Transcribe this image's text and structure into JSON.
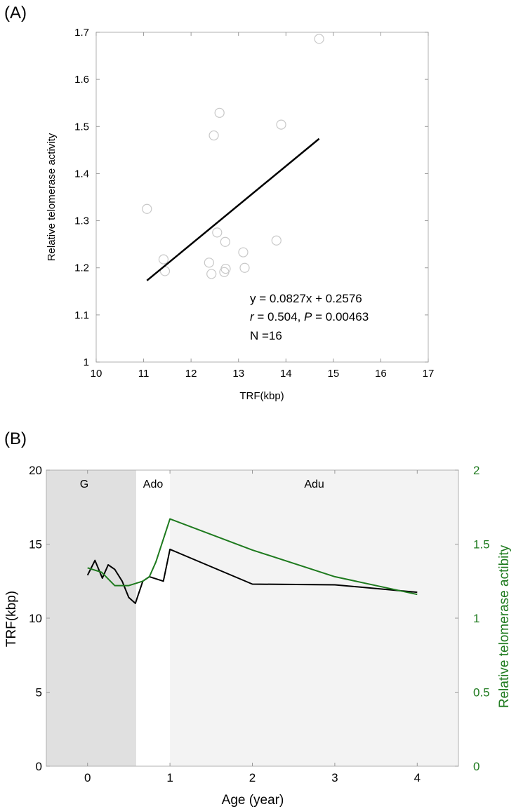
{
  "chart_data": [
    {
      "type": "scatter",
      "panel_label": "(A)",
      "title": "",
      "xlabel": "TRF(kbp)",
      "ylabel": "Relative telomerase activity",
      "xlim": [
        10,
        17
      ],
      "ylim": [
        1.0,
        1.7
      ],
      "xticks": [
        "10",
        "11",
        "12",
        "13",
        "14",
        "15",
        "16",
        "17"
      ],
      "yticks": [
        "1",
        "1.1",
        "1.2",
        "1.3",
        "1.4",
        "1.5",
        "1.6",
        "1.7"
      ],
      "points": [
        {
          "x": 11.07,
          "y": 1.325
        },
        {
          "x": 11.42,
          "y": 1.218
        },
        {
          "x": 11.45,
          "y": 1.193
        },
        {
          "x": 12.38,
          "y": 1.211
        },
        {
          "x": 12.43,
          "y": 1.187
        },
        {
          "x": 12.48,
          "y": 1.481
        },
        {
          "x": 12.55,
          "y": 1.275
        },
        {
          "x": 12.6,
          "y": 1.529
        },
        {
          "x": 12.7,
          "y": 1.191
        },
        {
          "x": 12.72,
          "y": 1.255
        },
        {
          "x": 12.73,
          "y": 1.198
        },
        {
          "x": 13.1,
          "y": 1.233
        },
        {
          "x": 13.13,
          "y": 1.2
        },
        {
          "x": 13.8,
          "y": 1.258
        },
        {
          "x": 13.9,
          "y": 1.504
        },
        {
          "x": 14.7,
          "y": 1.686
        }
      ],
      "fit_line": {
        "x": [
          11.07,
          14.7
        ],
        "y": [
          1.173,
          1.474
        ],
        "slope": 0.0827,
        "intercept": 0.2576
      },
      "annotations": {
        "equation": "y = 0.0827x + 0.2576",
        "r_symbol": "r",
        "r_text": " = 0.504, ",
        "p_symbol": "P",
        "p_text": " = 0.00463",
        "n_text": "N =16"
      }
    },
    {
      "type": "line",
      "panel_label": "(B)",
      "title": "",
      "xlabel": "Age (year)",
      "ylabel_left": "TRF(kbp)",
      "ylabel_right": "Relative telomerase actibity",
      "xlim": [
        -0.5,
        4.5
      ],
      "ylim_left": [
        0,
        20
      ],
      "ylim_right": [
        0,
        2
      ],
      "xticks": [
        "0",
        "1",
        "2",
        "3",
        "4"
      ],
      "yticks_left": [
        "0",
        "5",
        "10",
        "15",
        "20"
      ],
      "yticks_right": [
        "0",
        "0.5",
        "1",
        "1.5",
        "2"
      ],
      "regions": [
        {
          "label": "G",
          "x": [
            -0.5,
            0.59
          ],
          "color": "#e0e0e0"
        },
        {
          "label": "Ado",
          "x": [
            0.59,
            1.0
          ],
          "color": "#ffffff"
        },
        {
          "label": "Adu",
          "x": [
            1.0,
            4.5
          ],
          "color": "#f3f3f3"
        }
      ],
      "series": [
        {
          "name": "TRF",
          "axis": "left",
          "color": "#000000",
          "x": [
            0.0,
            0.09,
            0.18,
            0.25,
            0.33,
            0.42,
            0.5,
            0.58,
            0.67,
            0.75,
            0.92,
            1.0,
            2.0,
            3.0,
            4.0
          ],
          "y": [
            12.9,
            13.9,
            12.7,
            13.6,
            13.3,
            12.5,
            11.4,
            11.0,
            12.5,
            12.8,
            12.5,
            14.65,
            12.3,
            12.25,
            11.75
          ]
        },
        {
          "name": "Relative telomerase activity",
          "axis": "right",
          "color": "#1e7a1e",
          "x": [
            0.0,
            0.17,
            0.33,
            0.5,
            0.67,
            0.75,
            0.83,
            1.0,
            2.0,
            3.0,
            4.0
          ],
          "y": [
            1.34,
            1.31,
            1.22,
            1.22,
            1.25,
            1.28,
            1.38,
            1.67,
            1.46,
            1.28,
            1.16
          ]
        }
      ]
    }
  ]
}
